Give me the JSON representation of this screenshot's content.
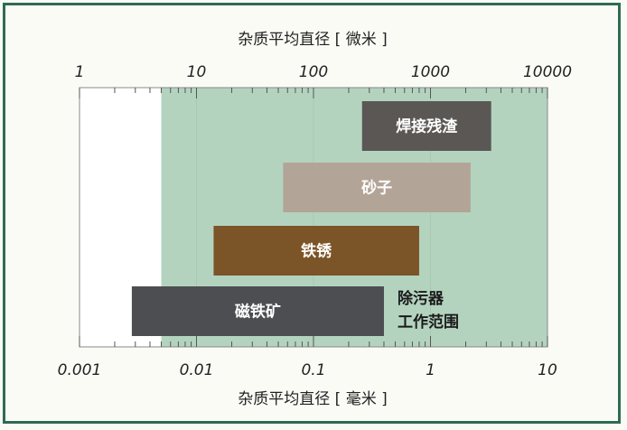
{
  "chart_data": {
    "type": "bar",
    "orientation": "horizontal-range",
    "top_axis": {
      "title": "杂质平均直径 [ 微米 ]",
      "scale": "log",
      "range": [
        1,
        10000
      ],
      "tick_labels": [
        "1",
        "10",
        "100",
        "1000",
        "10000"
      ]
    },
    "bottom_axis": {
      "title": "杂质平均直径 [ 毫米 ]",
      "scale": "log",
      "range": [
        0.001,
        10
      ],
      "tick_labels": [
        "0.001",
        "0.01",
        "0.1",
        "1",
        "10"
      ]
    },
    "bars": [
      {
        "label": "焊接残渣",
        "start_um": 260,
        "end_um": 3300,
        "color": "#5b5754"
      },
      {
        "label": "砂子",
        "start_um": 55,
        "end_um": 2200,
        "color": "#b3a498"
      },
      {
        "label": "铁锈",
        "start_um": 14,
        "end_um": 800,
        "color": "#7b5427"
      },
      {
        "label": "磁铁矿",
        "start_um": 2.8,
        "end_um": 400,
        "color": "#4d4e51"
      }
    ],
    "working_range": {
      "label_lines": [
        "除污器",
        "工作范围"
      ],
      "start_um": 5,
      "end_um": 10000,
      "color": "#b3d3bf"
    },
    "grid": false
  }
}
